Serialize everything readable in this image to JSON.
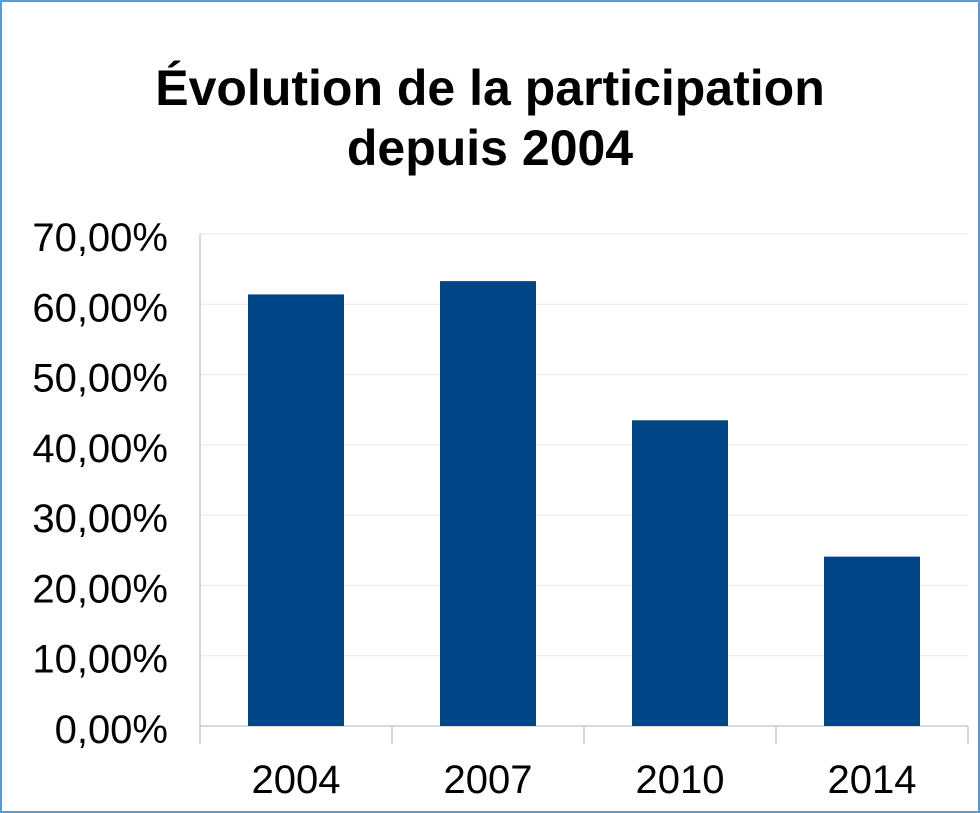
{
  "chart_data": {
    "type": "bar",
    "title_lines": [
      "Évolution de la participation",
      "depuis 2004"
    ],
    "categories": [
      "2004",
      "2007",
      "2010",
      "2014"
    ],
    "values": [
      61.4,
      63.3,
      43.5,
      24.1
    ],
    "xlabel": "",
    "ylabel": "",
    "ylim": [
      0,
      70
    ],
    "y_ticks": [
      0,
      10,
      20,
      30,
      40,
      50,
      60,
      70
    ],
    "y_tick_labels": [
      "0,00%",
      "10,00%",
      "20,00%",
      "30,00%",
      "40,00%",
      "50,00%",
      "60,00%",
      "70,00%"
    ],
    "grid": true,
    "legend": "none",
    "bar_color": "#004586",
    "grid_color": "#e6e6e6",
    "border_color": "#5b9bd5"
  }
}
